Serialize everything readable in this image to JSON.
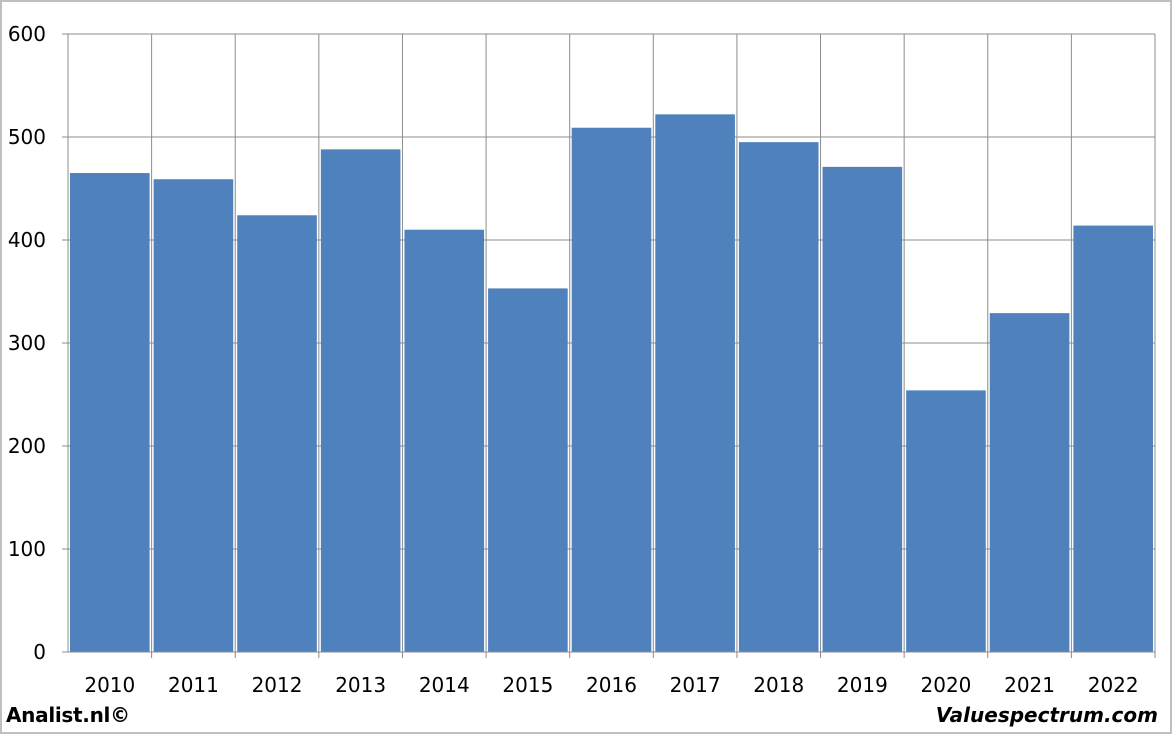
{
  "chart_data": {
    "type": "bar",
    "title": "",
    "xlabel": "",
    "ylabel": "",
    "categories": [
      "2010",
      "2011",
      "2012",
      "2013",
      "2014",
      "2015",
      "2016",
      "2017",
      "2018",
      "2019",
      "2020",
      "2021",
      "2022"
    ],
    "values": [
      465,
      459,
      424,
      488,
      410,
      353,
      509,
      522,
      495,
      471,
      254,
      329,
      414
    ],
    "ylim": [
      0,
      600
    ],
    "yticks": [
      "0",
      "100",
      "200",
      "300",
      "400",
      "500",
      "600"
    ],
    "grid": true,
    "legend": "none",
    "bar_color": "#4f81bd",
    "grid_color": "#8c8c8c"
  },
  "footer": {
    "left": "Analist.nl©",
    "right": "Valuespectrum.com"
  }
}
